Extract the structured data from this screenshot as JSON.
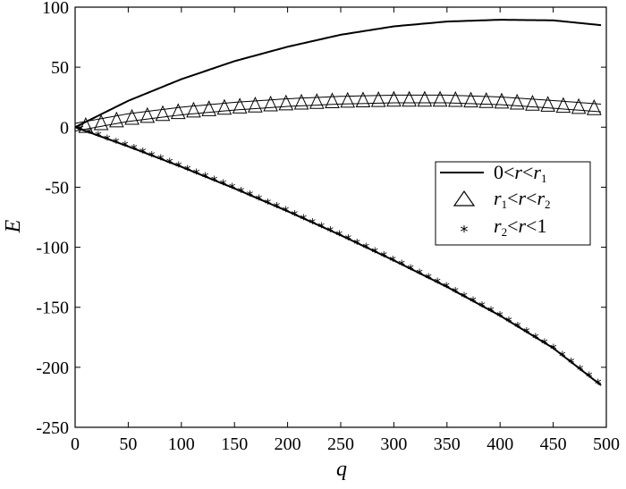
{
  "chart_data": {
    "type": "line",
    "title": "",
    "xlabel": "q",
    "ylabel": "E",
    "xlim": [
      0,
      500
    ],
    "ylim": [
      -250,
      100
    ],
    "xticks": [
      0,
      50,
      100,
      150,
      200,
      250,
      300,
      350,
      400,
      450,
      500
    ],
    "yticks": [
      100,
      50,
      0,
      -50,
      -100,
      -150,
      -200,
      -250
    ],
    "xtick_labels": [
      "0",
      "50",
      "100",
      "150",
      "200",
      "250",
      "300",
      "350",
      "400",
      "450",
      "500"
    ],
    "ytick_labels": [
      "100",
      "50",
      "0",
      "-50",
      "-100",
      "-150",
      "-200",
      "-250"
    ],
    "grid": false,
    "legend_position": "right",
    "series": [
      {
        "key": "s1",
        "legend": {
          "a": "0<",
          "b": "r",
          "c": "<",
          "d": "r",
          "e": "1",
          "f": ""
        },
        "style": "line-thick",
        "x": [
          0,
          50,
          100,
          150,
          200,
          250,
          300,
          350,
          400,
          450,
          495
        ],
        "y": [
          0,
          22,
          40,
          55,
          67,
          77,
          84,
          88,
          89.5,
          89,
          85
        ]
      },
      {
        "key": "s2",
        "legend": {
          "a": "",
          "b": "r",
          "c": "1",
          "d": "<",
          "e": "r",
          "f": "<",
          "g": "r",
          "h": "2"
        },
        "style": "line-thin-with-triangles",
        "x": [
          0,
          50,
          100,
          150,
          200,
          250,
          300,
          350,
          400,
          450,
          495
        ],
        "y": [
          0,
          8,
          13.5,
          17.5,
          20.5,
          22.5,
          23.5,
          23.5,
          22,
          19,
          16
        ]
      },
      {
        "key": "s3",
        "legend": {
          "a": "",
          "b": "r",
          "c": "2",
          "d": "<",
          "e": "r",
          "f": "<1"
        },
        "style": "line-thick-with-stars",
        "x": [
          0,
          50,
          100,
          150,
          200,
          250,
          300,
          350,
          400,
          450,
          495
        ],
        "y": [
          0,
          -16,
          -33,
          -51,
          -70,
          -90,
          -111,
          -133,
          -157,
          -184,
          -215
        ]
      }
    ]
  }
}
